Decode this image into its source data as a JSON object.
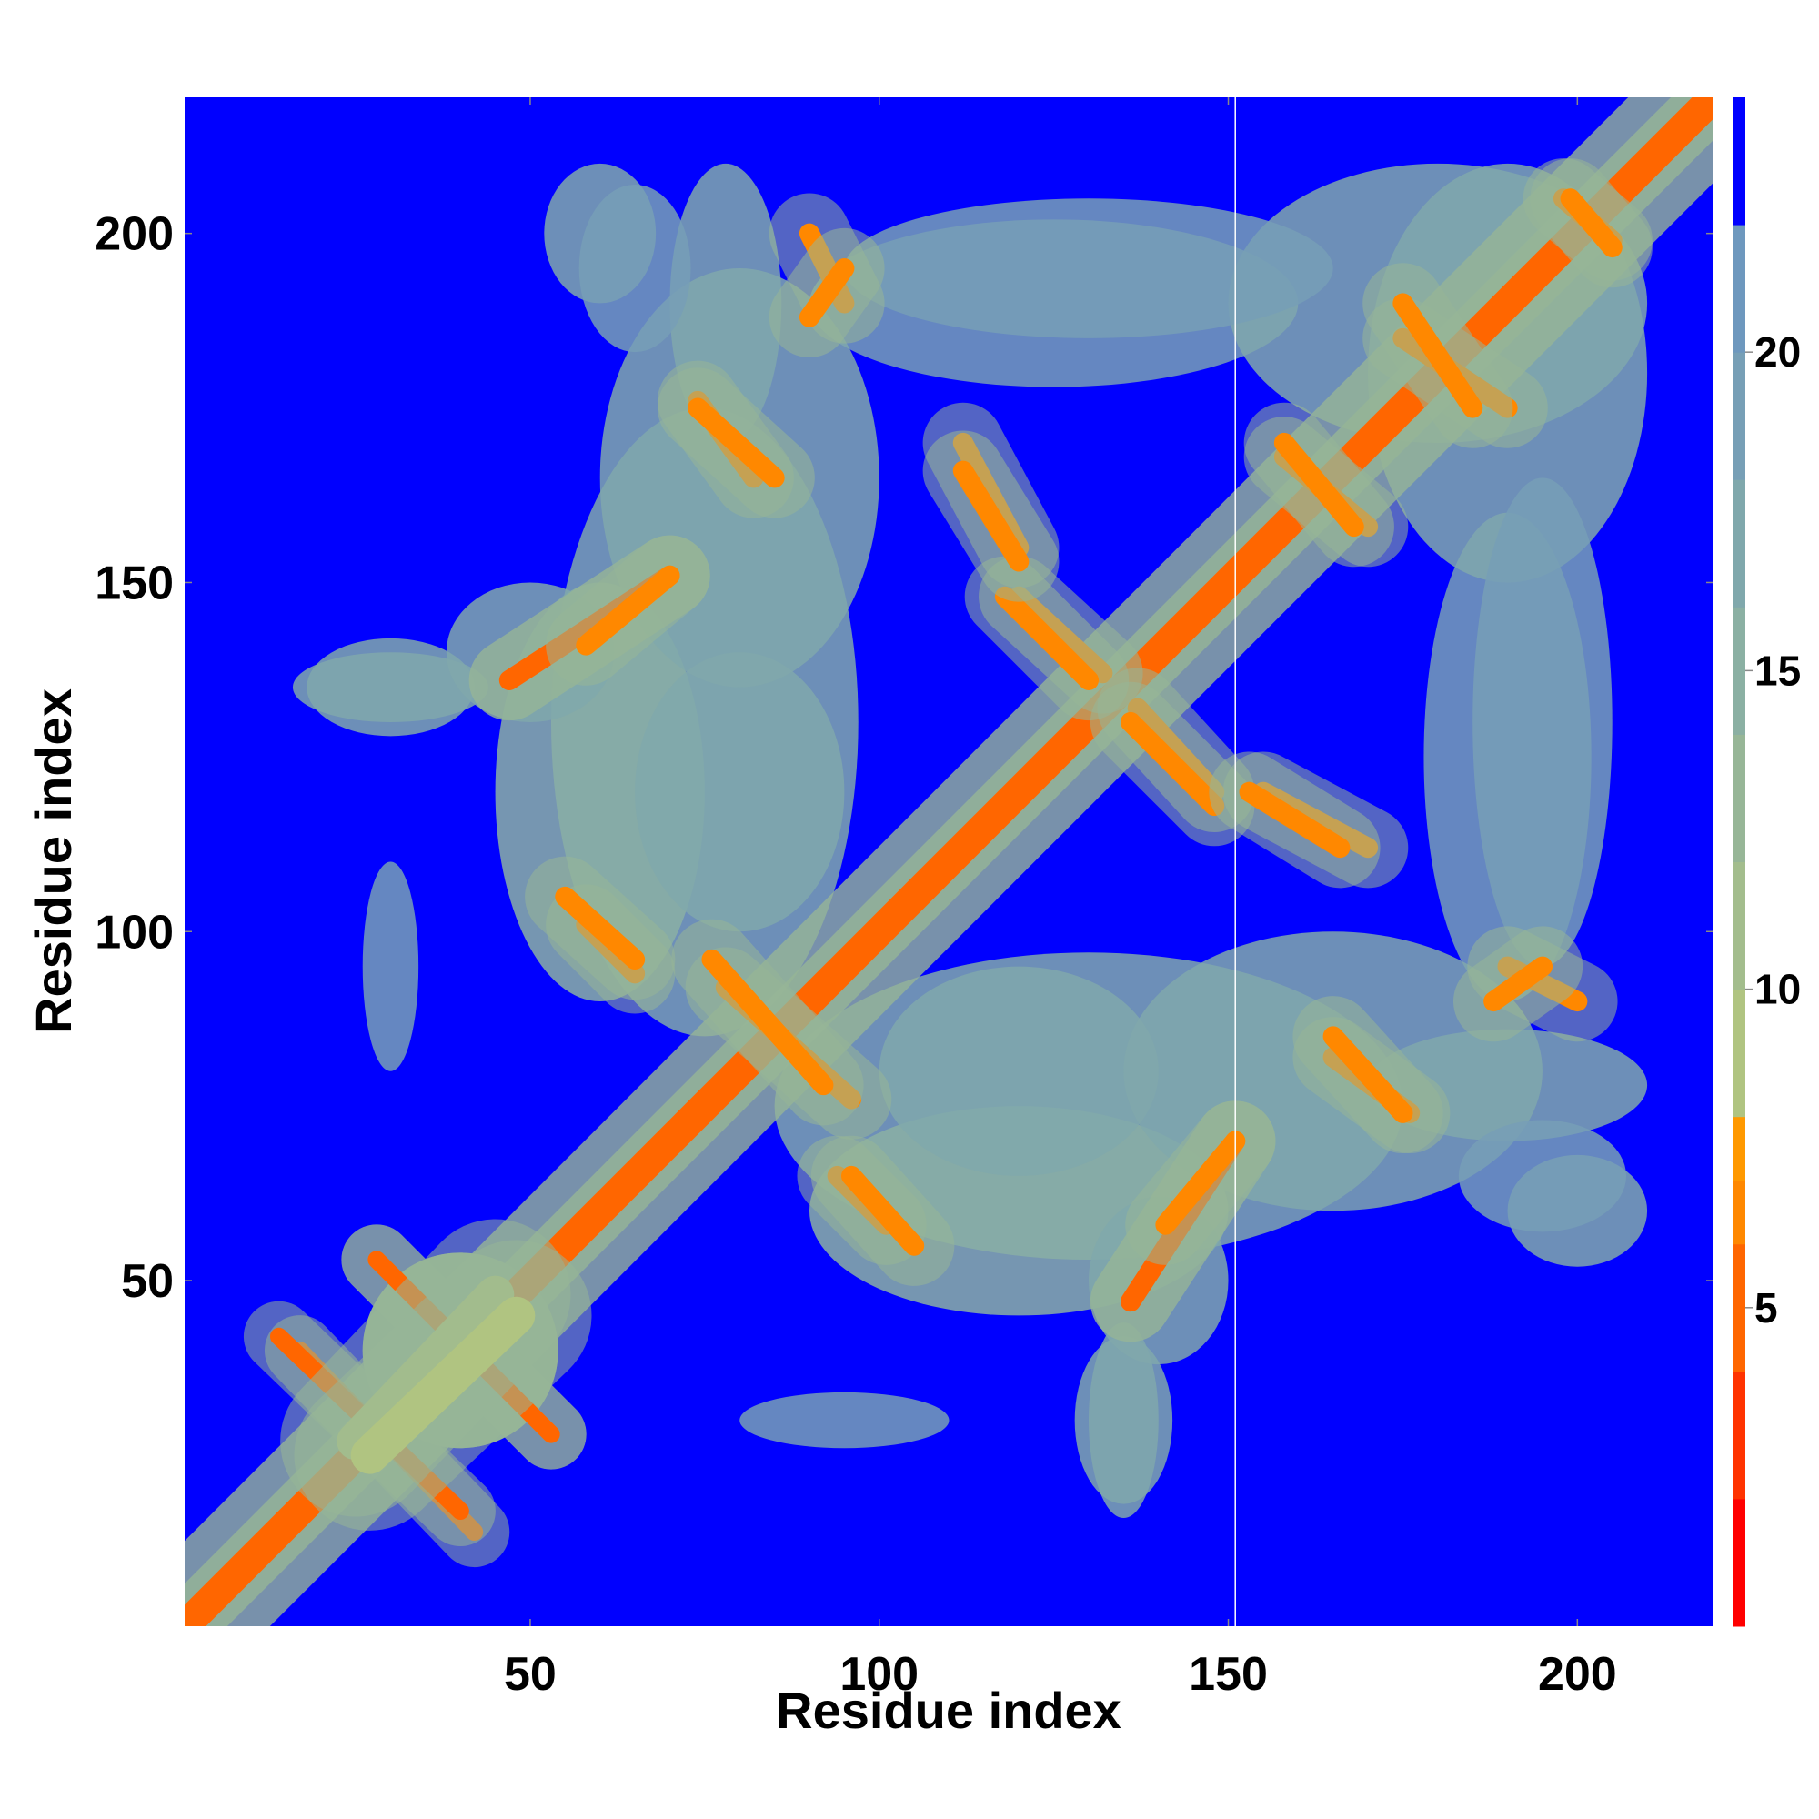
{
  "chart_data": {
    "type": "heatmap",
    "title": "",
    "xlabel": "Residue index",
    "ylabel": "Residue index",
    "xlim": [
      0.5,
      219.5
    ],
    "ylim": [
      0.5,
      219.5
    ],
    "n_residues": 219,
    "x_ticks": [
      50,
      100,
      150,
      200
    ],
    "y_ticks": [
      50,
      100,
      150,
      200
    ],
    "x_tick_labels": [
      "50",
      "100",
      "150",
      "200"
    ],
    "y_tick_labels": [
      "50",
      "100",
      "150",
      "200"
    ],
    "background_value": 24,
    "highlight_column": 151,
    "colorbar": {
      "ticks": [
        5,
        10,
        15,
        20
      ],
      "tick_labels": [
        "5",
        "10",
        "15",
        "20"
      ],
      "range": [
        0,
        24
      ],
      "bins": [
        {
          "min": 0,
          "max": 2,
          "color": "#ff0000"
        },
        {
          "min": 2,
          "max": 4,
          "color": "#ff3300"
        },
        {
          "min": 4,
          "max": 6,
          "color": "#ff6600"
        },
        {
          "min": 6,
          "max": 7,
          "color": "#ff8800"
        },
        {
          "min": 7,
          "max": 8,
          "color": "#ff9900"
        },
        {
          "min": 8,
          "max": 10,
          "color": "#b0c481"
        },
        {
          "min": 10,
          "max": 12,
          "color": "#a3bd8d"
        },
        {
          "min": 12,
          "max": 14,
          "color": "#97b697"
        },
        {
          "min": 14,
          "max": 16,
          "color": "#8bb0a3"
        },
        {
          "min": 16,
          "max": 18,
          "color": "#80a8ac"
        },
        {
          "min": 18,
          "max": 20,
          "color": "#779fb6"
        },
        {
          "min": 20,
          "max": 22,
          "color": "#6e98be"
        },
        {
          "min": 22,
          "max": 24,
          "color": "#0000ff"
        }
      ]
    },
    "contact_lines": [
      {
        "from": [
          1,
          1
        ],
        "to": [
          219,
          219
        ],
        "value": 1.0,
        "width": 1.2
      },
      {
        "from": [
          1,
          1
        ],
        "to": [
          219,
          219
        ],
        "value": 5.0,
        "width": 2.4
      },
      {
        "from": [
          17,
          40
        ],
        "to": [
          42,
          14
        ],
        "value": 5.5,
        "width": 1.4
      },
      {
        "from": [
          28,
          53
        ],
        "to": [
          53,
          28
        ],
        "value": 5.5,
        "width": 1.4
      },
      {
        "from": [
          25,
          27
        ],
        "to": [
          45,
          48
        ],
        "value": 9.0,
        "width": 3.0
      },
      {
        "from": [
          47,
          136
        ],
        "to": [
          70,
          151
        ],
        "value": 5.5,
        "width": 1.6
      },
      {
        "from": [
          136,
          47
        ],
        "to": [
          151,
          70
        ],
        "value": 5.5,
        "width": 1.6
      },
      {
        "from": [
          58,
          101
        ],
        "to": [
          65,
          94
        ],
        "value": 6.0,
        "width": 1.6
      },
      {
        "from": [
          74,
          176
        ],
        "to": [
          82,
          165
        ],
        "value": 6.0,
        "width": 1.6
      },
      {
        "from": [
          78,
          92
        ],
        "to": [
          96,
          76
        ],
        "value": 6.0,
        "width": 1.6
      },
      {
        "from": [
          90,
          200
        ],
        "to": [
          95,
          190
        ],
        "value": 6.0,
        "width": 1.6
      },
      {
        "from": [
          96,
          65
        ],
        "to": [
          105,
          55
        ],
        "value": 6.0,
        "width": 1.6
      },
      {
        "from": [
          112,
          170
        ],
        "to": [
          120,
          155
        ],
        "value": 6.0,
        "width": 1.6
      },
      {
        "from": [
          120,
          148
        ],
        "to": [
          132,
          137
        ],
        "value": 6.0,
        "width": 1.6
      },
      {
        "from": [
          136,
          130
        ],
        "to": [
          148,
          118
        ],
        "value": 6.0,
        "width": 1.6
      },
      {
        "from": [
          141,
          58
        ],
        "to": [
          151,
          70
        ],
        "value": 6.0,
        "width": 1.6
      },
      {
        "from": [
          153,
          120
        ],
        "to": [
          166,
          112
        ],
        "value": 6.5,
        "width": 1.6
      },
      {
        "from": [
          158,
          168
        ],
        "to": [
          170,
          158
        ],
        "value": 6.0,
        "width": 1.6
      },
      {
        "from": [
          165,
          85
        ],
        "to": [
          175,
          74
        ],
        "value": 6.0,
        "width": 1.6
      },
      {
        "from": [
          175,
          185
        ],
        "to": [
          190,
          175
        ],
        "value": 6.0,
        "width": 1.6
      },
      {
        "from": [
          188,
          90
        ],
        "to": [
          195,
          95
        ],
        "value": 6.5,
        "width": 1.6
      },
      {
        "from": [
          198,
          205
        ],
        "to": [
          205,
          199
        ],
        "value": 6.0,
        "width": 1.6
      }
    ],
    "contact_blobs": [
      {
        "cx": 30,
        "cy": 25,
        "rx": 6,
        "ry": 6,
        "value": 23.5
      },
      {
        "cx": 40,
        "cy": 40,
        "rx": 14,
        "ry": 14,
        "value": 13
      },
      {
        "cx": 30,
        "cy": 135,
        "rx": 14,
        "ry": 5,
        "value": 16
      },
      {
        "cx": 60,
        "cy": 200,
        "rx": 8,
        "ry": 10,
        "value": 16
      },
      {
        "cx": 78,
        "cy": 190,
        "rx": 8,
        "ry": 20,
        "value": 16
      },
      {
        "cx": 75,
        "cy": 130,
        "rx": 22,
        "ry": 45,
        "value": 16
      },
      {
        "cx": 95,
        "cy": 30,
        "rx": 15,
        "ry": 4,
        "value": 18
      },
      {
        "cx": 120,
        "cy": 60,
        "rx": 30,
        "ry": 15,
        "value": 15
      },
      {
        "cx": 120,
        "cy": 80,
        "rx": 20,
        "ry": 15,
        "value": 16
      },
      {
        "cx": 125,
        "cy": 190,
        "rx": 35,
        "ry": 12,
        "value": 19
      },
      {
        "cx": 135,
        "cy": 30,
        "rx": 7,
        "ry": 12,
        "value": 16
      },
      {
        "cx": 140,
        "cy": 50,
        "rx": 10,
        "ry": 12,
        "value": 16
      },
      {
        "cx": 165,
        "cy": 80,
        "rx": 30,
        "ry": 20,
        "value": 16
      },
      {
        "cx": 180,
        "cy": 190,
        "rx": 30,
        "ry": 20,
        "value": 16
      },
      {
        "cx": 195,
        "cy": 130,
        "rx": 10,
        "ry": 35,
        "value": 18
      },
      {
        "cx": 195,
        "cy": 65,
        "rx": 12,
        "ry": 8,
        "value": 18
      }
    ]
  }
}
